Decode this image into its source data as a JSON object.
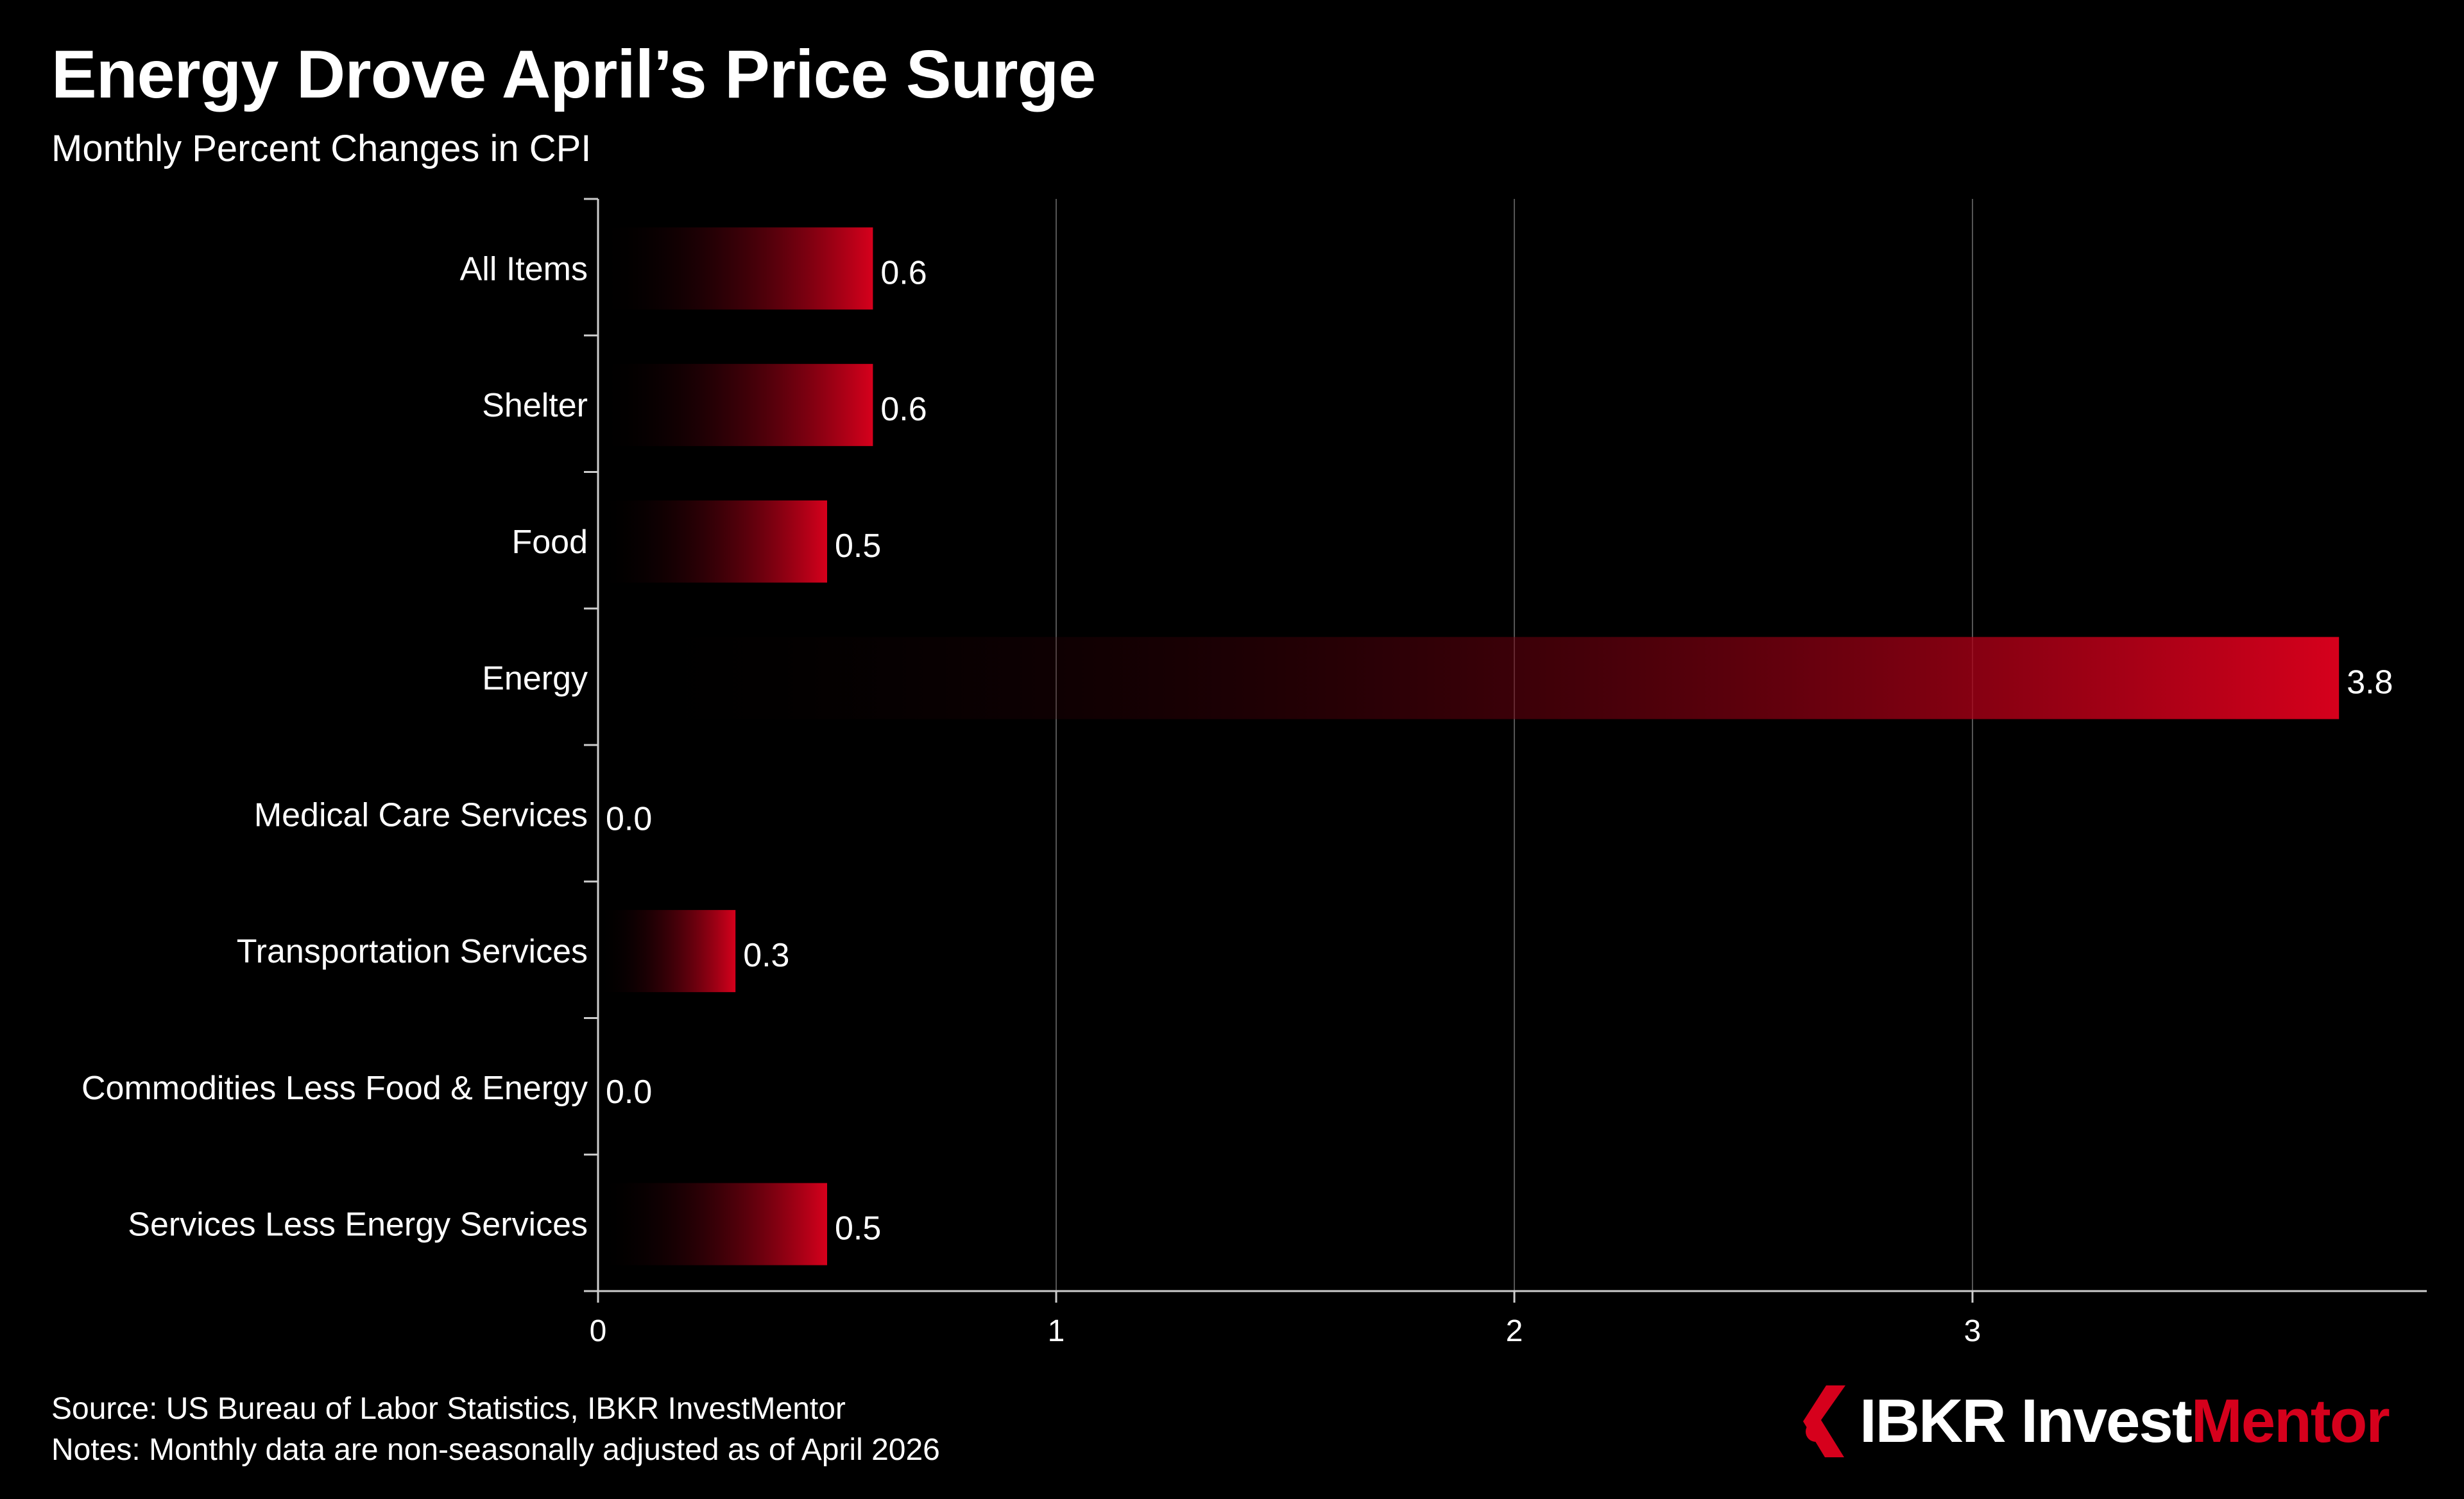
{
  "title": "Energy Drove April’s Price Surge",
  "subtitle": "Monthly Percent Changes in CPI",
  "chart_data": {
    "type": "bar",
    "orientation": "horizontal",
    "categories": [
      "All Items",
      "Shelter",
      "Food",
      "Energy",
      "Medical Care Services",
      "Transportation Services",
      "Commodities Less Food & Energy",
      "Services Less Energy Services"
    ],
    "values": [
      0.6,
      0.6,
      0.5,
      3.8,
      0.0,
      0.3,
      0.0,
      0.5
    ],
    "value_labels": [
      "0.6",
      "0.6",
      "0.5",
      "3.8",
      "0.0",
      "0.3",
      "0.0",
      "0.5"
    ],
    "xlim": [
      0,
      4
    ],
    "xticks": [
      0,
      1,
      2,
      3
    ],
    "xtick_labels": [
      "0",
      "1",
      "2",
      "3"
    ],
    "grid": "vertical",
    "bar_color_start": "#000000",
    "bar_color_end": "#d6001c",
    "gridline_color": "#555555",
    "axis_color": "#cccccc"
  },
  "footer": {
    "source": "Source: US Bureau of Labor Statistics, IBKR InvestMentor",
    "notes": "Notes: Monthly data are non-seasonally adjusted as of April 2026"
  },
  "brand": {
    "icon": "ibkr-logo-icon",
    "name_part1": "IBKR Invest",
    "name_part2": "Mentor",
    "accent_color": "#d6001c"
  }
}
